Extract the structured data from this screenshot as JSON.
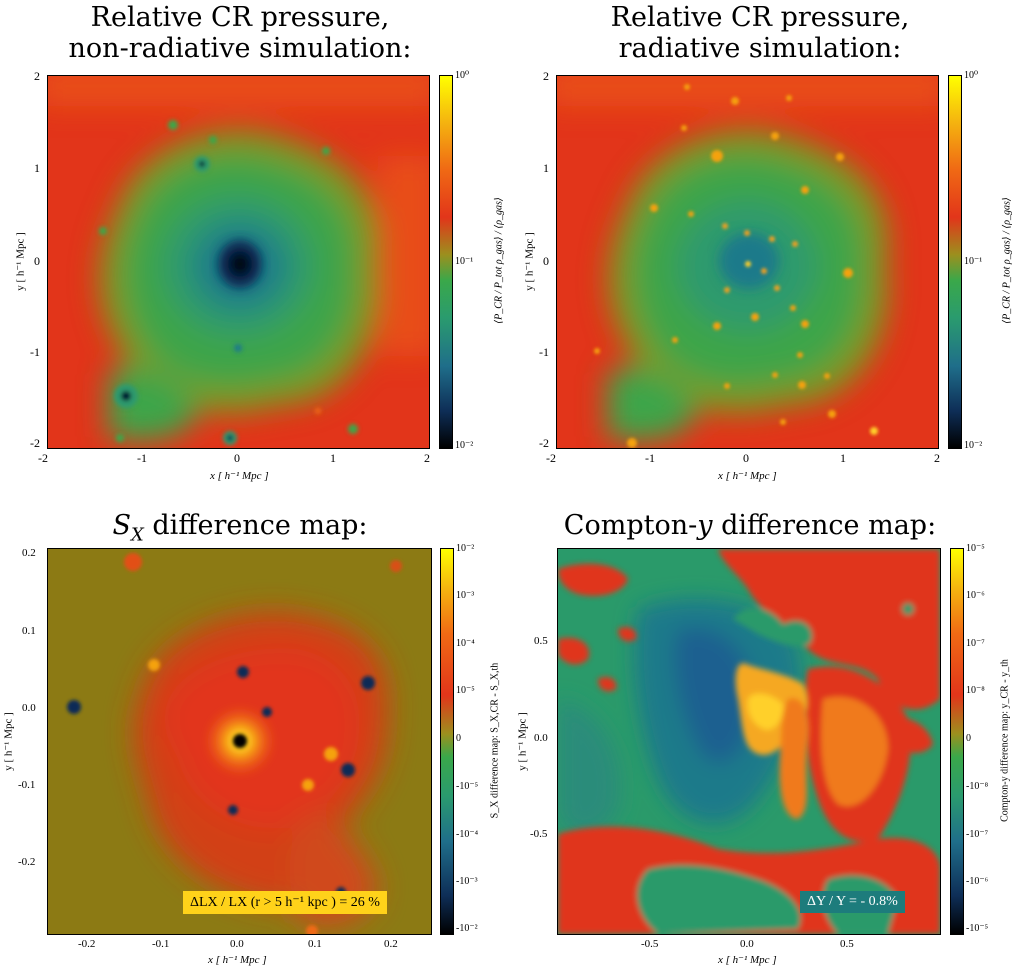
{
  "chart_data": [
    {
      "type": "heatmap",
      "title_lines": [
        "Relative CR pressure,",
        "non-radiative simulation:"
      ],
      "xlabel": "x [ h⁻¹ Mpc ]",
      "ylabel": "y [ h⁻¹ Mpc ]",
      "xlim": [
        -2,
        2
      ],
      "ylim": [
        -2,
        2
      ],
      "x_ticks": [
        "-2",
        "-1",
        "0",
        "1",
        "2"
      ],
      "y_ticks": [
        "-2",
        "-1",
        "0",
        "1",
        "2"
      ],
      "colorbar": {
        "label": "⟨P_CR / P_tot ρ_gas⟩ / ⟨ρ_gas⟩",
        "scale": "log",
        "ticks": [
          "10⁰",
          "10⁻¹",
          "10⁻²"
        ],
        "range": [
          0.01,
          1
        ]
      }
    },
    {
      "type": "heatmap",
      "title_lines": [
        "Relative CR pressure,",
        "radiative simulation:"
      ],
      "xlabel": "x [ h⁻¹ Mpc ]",
      "ylabel": "y [ h⁻¹ Mpc ]",
      "xlim": [
        -2,
        2
      ],
      "ylim": [
        -2,
        2
      ],
      "x_ticks": [
        "-2",
        "-1",
        "0",
        "1",
        "2"
      ],
      "y_ticks": [
        "-2",
        "-1",
        "0",
        "1",
        "2"
      ],
      "colorbar": {
        "label": "⟨P_CR / P_tot ρ_gas⟩ / ⟨ρ_gas⟩",
        "scale": "log",
        "ticks": [
          "10⁰",
          "10⁻¹",
          "10⁻²"
        ],
        "range": [
          0.01,
          1
        ]
      }
    },
    {
      "type": "heatmap",
      "title_main": "S",
      "title_sub": "X",
      "title_rest": " difference map:",
      "xlabel": "x [ h⁻¹ Mpc ]",
      "ylabel": "y [ h⁻¹ Mpc ]",
      "xlim": [
        -0.25,
        0.25
      ],
      "ylim": [
        -0.25,
        0.25
      ],
      "x_ticks": [
        "-0.2",
        "-0.1",
        "0.0",
        "0.1",
        "0.2"
      ],
      "y_ticks": [
        "-0.2",
        "-0.1",
        "0.0",
        "0.1",
        "0.2"
      ],
      "colorbar": {
        "label": "S_X difference map: S_X,CR - S_X,th",
        "scale": "symlog",
        "ticks": [
          "10⁻²",
          "10⁻³",
          "10⁻⁴",
          "10⁻⁵",
          "0",
          "-10⁻⁵",
          "-10⁻⁴",
          "-10⁻³",
          "-10⁻²"
        ]
      },
      "annotation": "ΔLX / LX (r > 5 h⁻¹ kpc ) = 26 %"
    },
    {
      "type": "heatmap",
      "title_main": "Compton-",
      "title_var": "y",
      "title_rest": " difference map:",
      "xlabel": "x [ h⁻¹ Mpc ]",
      "ylabel": "y [ h⁻¹ Mpc ]",
      "xlim": [
        -0.95,
        0.95
      ],
      "ylim": [
        -0.95,
        0.95
      ],
      "x_ticks": [
        "-0.5",
        "0.0",
        "0.5"
      ],
      "y_ticks": [
        "-0.5",
        "0.0",
        "0.5"
      ],
      "colorbar": {
        "label": "Compton-y difference map: y_CR - y_th",
        "scale": "symlog",
        "ticks": [
          "10⁻⁵",
          "10⁻⁶",
          "10⁻⁷",
          "10⁻⁸",
          "0",
          "-10⁻⁸",
          "-10⁻⁷",
          "-10⁻⁶",
          "-10⁻⁵"
        ]
      },
      "annotation": "ΔY / Y = - 0.8%"
    }
  ],
  "colors": {
    "cr_scale": [
      "#000000",
      "#0e2e57",
      "#1f6e8a",
      "#2a9b6e",
      "#3aa84a",
      "#9c8f1e",
      "#d8431c",
      "#e7301a",
      "#f06a14",
      "#f2a20f",
      "#ffff00"
    ],
    "olive_bg": "#8c7a14",
    "annot_yellow": "#ffd21a",
    "annot_teal": "#1d7c7c"
  }
}
